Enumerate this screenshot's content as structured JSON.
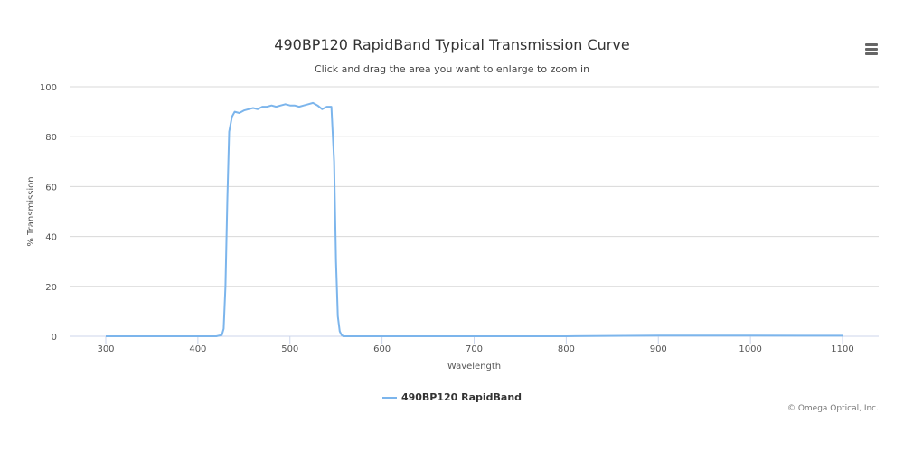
{
  "title": "490BP120 RapidBand Typical Transmission Curve",
  "subtitle": "Click and drag the area you want to enlarge to zoom in",
  "menu_icon": "hamburger-menu-icon",
  "credits": "© Omega Optical, Inc.",
  "chart_data": {
    "type": "line",
    "title": "490BP120 RapidBand Typical Transmission Curve",
    "xlabel": "Wavelength",
    "ylabel": "% Transmission",
    "xlim": [
      300,
      1100
    ],
    "ylim": [
      0,
      100
    ],
    "x_ticks": [
      300,
      400,
      500,
      600,
      700,
      800,
      900,
      1000,
      1100
    ],
    "y_ticks": [
      0,
      20,
      40,
      60,
      80,
      100
    ],
    "grid": true,
    "legend_position": "bottom-center",
    "colors": {
      "series": "#7cb5ec",
      "grid": "#d8d8d8",
      "axis": "#ccd6eb"
    },
    "series": [
      {
        "name": "490BP120 RapidBand",
        "x": [
          300,
          420,
          426,
          428,
          430,
          432,
          434,
          437,
          440,
          445,
          450,
          455,
          460,
          465,
          470,
          475,
          480,
          485,
          490,
          495,
          500,
          505,
          510,
          515,
          520,
          525,
          530,
          535,
          540,
          545,
          548,
          550,
          552,
          554,
          556,
          558,
          562,
          600,
          700,
          800,
          900,
          1000,
          1100
        ],
        "y": [
          0,
          0,
          0.5,
          3,
          20,
          55,
          82,
          88,
          90,
          89.5,
          90.5,
          91,
          91.5,
          91,
          92,
          92,
          92.5,
          92,
          92.5,
          93,
          92.5,
          92.5,
          92,
          92.5,
          93,
          93.5,
          92.5,
          91,
          92,
          92,
          70,
          30,
          8,
          2,
          0.5,
          0,
          0,
          0,
          0,
          0,
          0.3,
          0.3,
          0.2
        ]
      }
    ]
  }
}
